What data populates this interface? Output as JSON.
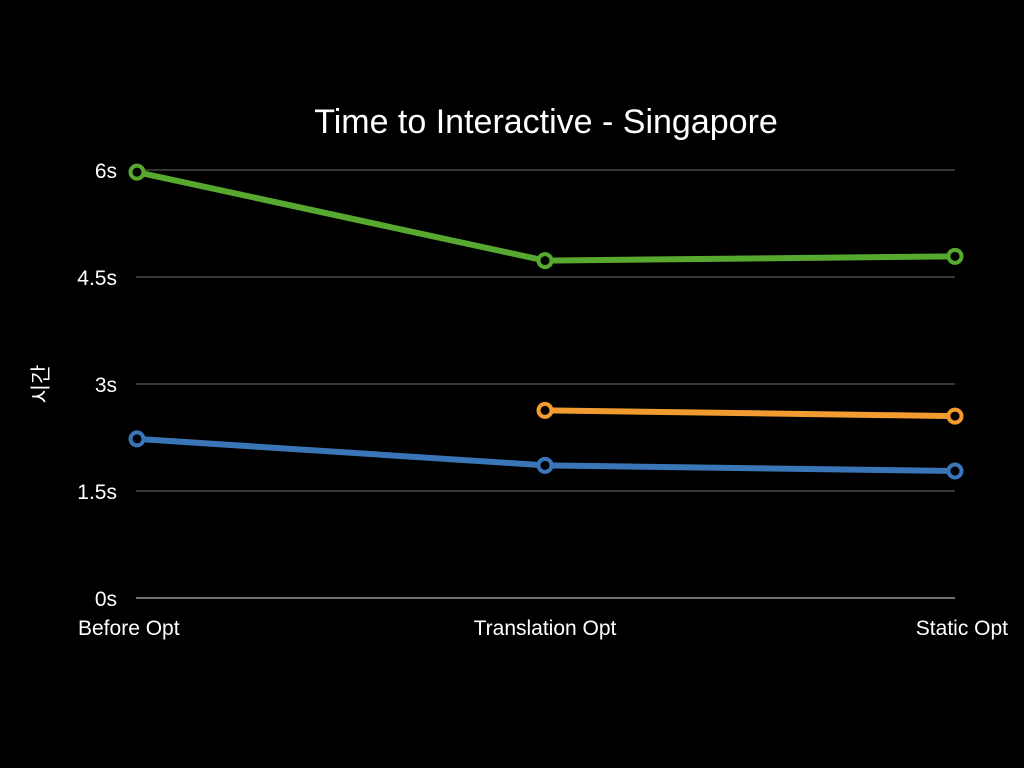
{
  "chart_data": {
    "type": "line",
    "title": "Time to Interactive - Singapore",
    "xlabel": "",
    "ylabel": "시간",
    "categories": [
      "Before Opt",
      "Translation Opt",
      "Static Opt"
    ],
    "ylim": [
      0,
      6
    ],
    "yticks": [
      {
        "value": 0,
        "label": "0s"
      },
      {
        "value": 1.5,
        "label": "1.5s"
      },
      {
        "value": 3,
        "label": "3s"
      },
      {
        "value": 4.5,
        "label": "4.5s"
      },
      {
        "value": 6,
        "label": "6s"
      }
    ],
    "grid": true,
    "legend": "none",
    "series": [
      {
        "color": "#56a92e",
        "values": [
          5.97,
          4.73,
          4.79
        ]
      },
      {
        "color": "#f29b30",
        "values": [
          null,
          2.63,
          2.55
        ]
      },
      {
        "color": "#3a75b8",
        "values": [
          2.23,
          1.86,
          1.78
        ]
      }
    ]
  },
  "colors": {
    "background": "#000000",
    "text": "#ffffff",
    "grid": "#6a6a6a"
  }
}
